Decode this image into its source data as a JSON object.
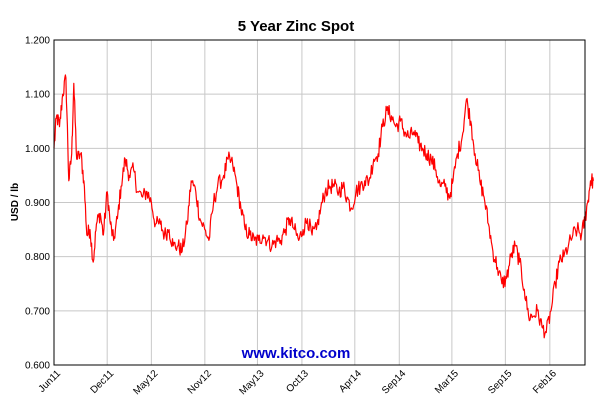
{
  "chart_data": {
    "type": "line",
    "title": "5 Year Zinc Spot",
    "xlabel": "",
    "ylabel": "USD / lb",
    "ylim": [
      0.6,
      1.2
    ],
    "xlim": [
      "2011-06",
      "2016-06"
    ],
    "grid": true,
    "legend": "none",
    "y_ticks": [
      "0.600",
      "0.700",
      "0.800",
      "0.900",
      "1.000",
      "1.100",
      "1.200"
    ],
    "x_ticks": [
      {
        "label": "Jun11",
        "x": "2011-06"
      },
      {
        "label": "Dec11",
        "x": "2011-12"
      },
      {
        "label": "May12",
        "x": "2012-05"
      },
      {
        "label": "Nov12",
        "x": "2012-11"
      },
      {
        "label": "May13",
        "x": "2013-05"
      },
      {
        "label": "Oct13",
        "x": "2013-10"
      },
      {
        "label": "Apr14",
        "x": "2014-04"
      },
      {
        "label": "Sep14",
        "x": "2014-09"
      },
      {
        "label": "Mar15",
        "x": "2015-03"
      },
      {
        "label": "Sep15",
        "x": "2015-09"
      },
      {
        "label": "Feb16",
        "x": "2016-02"
      }
    ],
    "series": [
      {
        "color": "#ff0000",
        "points": [
          [
            "2011-06-01",
            1.0
          ],
          [
            "2011-06-10",
            1.06
          ],
          [
            "2011-06-20",
            1.04
          ],
          [
            "2011-07-01",
            1.1
          ],
          [
            "2011-07-12",
            1.13
          ],
          [
            "2011-07-22",
            0.94
          ],
          [
            "2011-08-01",
            0.99
          ],
          [
            "2011-08-08",
            1.12
          ],
          [
            "2011-08-18",
            0.98
          ],
          [
            "2011-09-01",
            0.99
          ],
          [
            "2011-09-12",
            0.94
          ],
          [
            "2011-09-22",
            0.84
          ],
          [
            "2011-10-03",
            0.85
          ],
          [
            "2011-10-14",
            0.79
          ],
          [
            "2011-10-25",
            0.86
          ],
          [
            "2011-11-07",
            0.88
          ],
          [
            "2011-11-18",
            0.84
          ],
          [
            "2011-12-01",
            0.92
          ],
          [
            "2011-12-12",
            0.86
          ],
          [
            "2011-12-23",
            0.83
          ],
          [
            "2012-01-05",
            0.87
          ],
          [
            "2012-01-18",
            0.93
          ],
          [
            "2012-02-01",
            0.98
          ],
          [
            "2012-02-15",
            0.95
          ],
          [
            "2012-03-01",
            0.96
          ],
          [
            "2012-03-15",
            0.92
          ],
          [
            "2012-04-01",
            0.91
          ],
          [
            "2012-04-16",
            0.92
          ],
          [
            "2012-05-01",
            0.9
          ],
          [
            "2012-05-15",
            0.86
          ],
          [
            "2012-06-01",
            0.86
          ],
          [
            "2012-06-15",
            0.84
          ],
          [
            "2012-07-01",
            0.85
          ],
          [
            "2012-07-15",
            0.82
          ],
          [
            "2012-08-01",
            0.82
          ],
          [
            "2012-08-15",
            0.81
          ],
          [
            "2012-09-01",
            0.86
          ],
          [
            "2012-09-15",
            0.94
          ],
          [
            "2012-10-01",
            0.92
          ],
          [
            "2012-10-15",
            0.87
          ],
          [
            "2012-11-01",
            0.85
          ],
          [
            "2012-11-15",
            0.83
          ],
          [
            "2012-12-01",
            0.9
          ],
          [
            "2012-12-15",
            0.93
          ],
          [
            "2013-01-05",
            0.95
          ],
          [
            "2013-01-20",
            0.98
          ],
          [
            "2013-02-05",
            0.97
          ],
          [
            "2013-02-20",
            0.93
          ],
          [
            "2013-03-05",
            0.89
          ],
          [
            "2013-03-20",
            0.85
          ],
          [
            "2013-04-05",
            0.84
          ],
          [
            "2013-04-20",
            0.83
          ],
          [
            "2013-05-05",
            0.83
          ],
          [
            "2013-05-20",
            0.84
          ],
          [
            "2013-06-05",
            0.83
          ],
          [
            "2013-06-20",
            0.82
          ],
          [
            "2013-07-05",
            0.83
          ],
          [
            "2013-07-20",
            0.83
          ],
          [
            "2013-08-05",
            0.85
          ],
          [
            "2013-08-20",
            0.87
          ],
          [
            "2013-09-05",
            0.85
          ],
          [
            "2013-09-20",
            0.83
          ],
          [
            "2013-10-05",
            0.85
          ],
          [
            "2013-10-20",
            0.87
          ],
          [
            "2013-11-05",
            0.84
          ],
          [
            "2013-11-20",
            0.85
          ],
          [
            "2013-12-05",
            0.89
          ],
          [
            "2013-12-20",
            0.92
          ],
          [
            "2014-01-05",
            0.93
          ],
          [
            "2014-01-20",
            0.93
          ],
          [
            "2014-02-05",
            0.92
          ],
          [
            "2014-02-20",
            0.93
          ],
          [
            "2014-03-05",
            0.91
          ],
          [
            "2014-03-20",
            0.89
          ],
          [
            "2014-04-05",
            0.92
          ],
          [
            "2014-04-20",
            0.93
          ],
          [
            "2014-05-05",
            0.94
          ],
          [
            "2014-05-20",
            0.94
          ],
          [
            "2014-06-05",
            0.98
          ],
          [
            "2014-06-20",
            0.99
          ],
          [
            "2014-07-05",
            1.04
          ],
          [
            "2014-07-20",
            1.07
          ],
          [
            "2014-08-05",
            1.06
          ],
          [
            "2014-08-20",
            1.04
          ],
          [
            "2014-09-05",
            1.05
          ],
          [
            "2014-09-20",
            1.03
          ],
          [
            "2014-10-05",
            1.02
          ],
          [
            "2014-10-20",
            1.03
          ],
          [
            "2014-11-05",
            1.01
          ],
          [
            "2014-11-20",
            1.0
          ],
          [
            "2014-12-05",
            0.99
          ],
          [
            "2014-12-20",
            0.98
          ],
          [
            "2015-01-05",
            0.96
          ],
          [
            "2015-01-20",
            0.93
          ],
          [
            "2015-02-05",
            0.93
          ],
          [
            "2015-02-20",
            0.91
          ],
          [
            "2015-03-05",
            0.94
          ],
          [
            "2015-03-20",
            0.99
          ],
          [
            "2015-04-05",
            1.02
          ],
          [
            "2015-04-20",
            1.09
          ],
          [
            "2015-05-05",
            1.05
          ],
          [
            "2015-05-20",
            0.99
          ],
          [
            "2015-06-05",
            0.94
          ],
          [
            "2015-06-20",
            0.91
          ],
          [
            "2015-07-05",
            0.86
          ],
          [
            "2015-07-20",
            0.81
          ],
          [
            "2015-08-05",
            0.78
          ],
          [
            "2015-08-20",
            0.75
          ],
          [
            "2015-09-05",
            0.76
          ],
          [
            "2015-09-20",
            0.8
          ],
          [
            "2015-10-05",
            0.82
          ],
          [
            "2015-10-20",
            0.79
          ],
          [
            "2015-11-05",
            0.74
          ],
          [
            "2015-11-20",
            0.69
          ],
          [
            "2015-12-05",
            0.69
          ],
          [
            "2015-12-20",
            0.7
          ],
          [
            "2016-01-05",
            0.67
          ],
          [
            "2016-01-20",
            0.66
          ],
          [
            "2016-02-05",
            0.7
          ],
          [
            "2016-02-20",
            0.75
          ],
          [
            "2016-03-05",
            0.79
          ],
          [
            "2016-03-20",
            0.8
          ],
          [
            "2016-04-05",
            0.82
          ],
          [
            "2016-04-20",
            0.84
          ],
          [
            "2016-05-05",
            0.85
          ],
          [
            "2016-05-20",
            0.84
          ],
          [
            "2016-06-01",
            0.87
          ],
          [
            "2016-06-10",
            0.9
          ],
          [
            "2016-06-20",
            0.94
          ],
          [
            "2016-06-30",
            0.94
          ]
        ]
      }
    ]
  },
  "watermark": "www.kitco.com",
  "colors": {
    "line": "#ff0000",
    "grid": "#c8c8c8",
    "watermark": "#0000cc"
  }
}
